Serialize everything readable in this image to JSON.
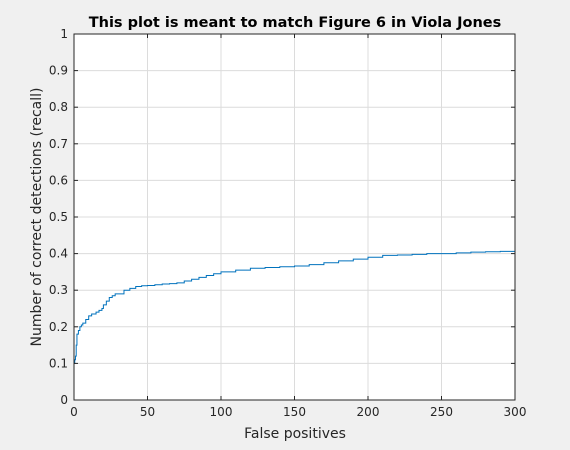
{
  "colors": {
    "figure_background": "#f0f0f0",
    "axes_background": "#ffffff",
    "line": "#0072bd",
    "grid": "#dcdcdc",
    "axis": "#262626"
  },
  "chart_data": {
    "type": "line",
    "title": "This plot is meant to match Figure 6 in Viola Jones",
    "xlabel": "False positives",
    "ylabel": "Number of correct detections (recall)",
    "xlim": [
      0,
      300
    ],
    "ylim": [
      0,
      1
    ],
    "xticks": [
      0,
      50,
      100,
      150,
      200,
      250,
      300
    ],
    "xtick_labels": [
      "0",
      "50",
      "100",
      "150",
      "200",
      "250",
      "300"
    ],
    "yticks": [
      0,
      0.1,
      0.2,
      0.3,
      0.4,
      0.5,
      0.6,
      0.7,
      0.8,
      0.9,
      1
    ],
    "ytick_labels": [
      "0",
      "0.1",
      "0.2",
      "0.3",
      "0.4",
      "0.5",
      "0.6",
      "0.7",
      "0.8",
      "0.9",
      "1"
    ],
    "grid": true,
    "box": true,
    "step": true,
    "series": [
      {
        "x": [
          0,
          0,
          0.5,
          1,
          1.5,
          2,
          3,
          4,
          5,
          6,
          8,
          10,
          12,
          15,
          17,
          19,
          20,
          22,
          24,
          26,
          28,
          30,
          34,
          38,
          42,
          46,
          50,
          55,
          60,
          65,
          70,
          75,
          80,
          85,
          90,
          95,
          100,
          110,
          120,
          130,
          140,
          150,
          160,
          170,
          180,
          190,
          200,
          210,
          220,
          230,
          240,
          250,
          260,
          270,
          280,
          290,
          300
        ],
        "y": [
          0,
          0.1,
          0.11,
          0.12,
          0.15,
          0.18,
          0.19,
          0.2,
          0.205,
          0.21,
          0.22,
          0.23,
          0.235,
          0.24,
          0.245,
          0.25,
          0.26,
          0.27,
          0.28,
          0.285,
          0.29,
          0.29,
          0.3,
          0.305,
          0.31,
          0.312,
          0.313,
          0.315,
          0.317,
          0.318,
          0.32,
          0.325,
          0.33,
          0.335,
          0.34,
          0.345,
          0.35,
          0.355,
          0.36,
          0.362,
          0.364,
          0.366,
          0.37,
          0.375,
          0.38,
          0.385,
          0.39,
          0.395,
          0.396,
          0.398,
          0.4,
          0.4,
          0.402,
          0.404,
          0.405,
          0.406,
          0.406
        ]
      }
    ]
  }
}
